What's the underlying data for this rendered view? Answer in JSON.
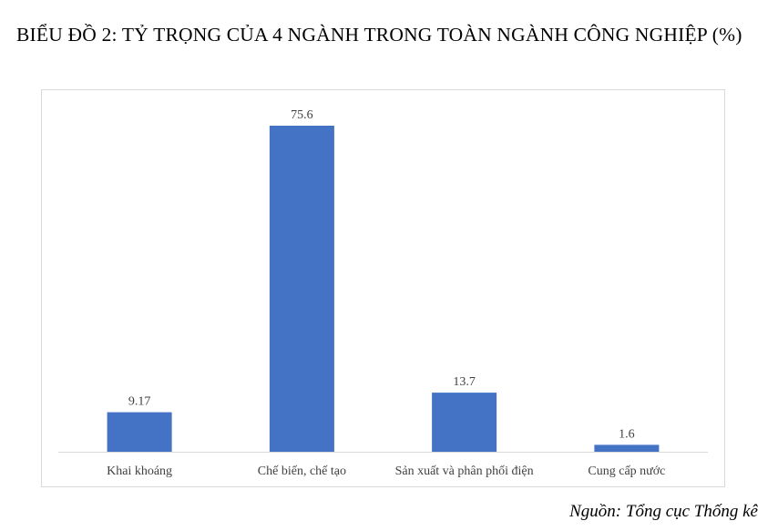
{
  "title": "BIỂU ĐỒ 2: TỶ TRỌNG CỦA 4 NGÀNH TRONG TOÀN NGÀNH CÔNG NGHIỆP (%)",
  "source": "Nguồn: Tổng cục Thống kê",
  "colors": {
    "bar": "#4472c4",
    "axis": "#d9d9d9"
  },
  "chart_data": {
    "type": "bar",
    "categories": [
      "Khai khoáng",
      "Chế biến, chế tạo",
      "Sản xuất và phân phối điện",
      "Cung cấp nước"
    ],
    "values": [
      9.17,
      75.6,
      13.7,
      1.6
    ],
    "value_labels": [
      "9.17",
      "75.6",
      "13.7",
      "1.6"
    ],
    "title": "BIỂU ĐỒ 2: TỶ TRỌNG CỦA 4 NGÀNH TRONG TOÀN NGÀNH CÔNG NGHIỆP (%)",
    "xlabel": "",
    "ylabel": "",
    "ylim": [
      0,
      75.6
    ],
    "grid": false,
    "legend": "none"
  }
}
